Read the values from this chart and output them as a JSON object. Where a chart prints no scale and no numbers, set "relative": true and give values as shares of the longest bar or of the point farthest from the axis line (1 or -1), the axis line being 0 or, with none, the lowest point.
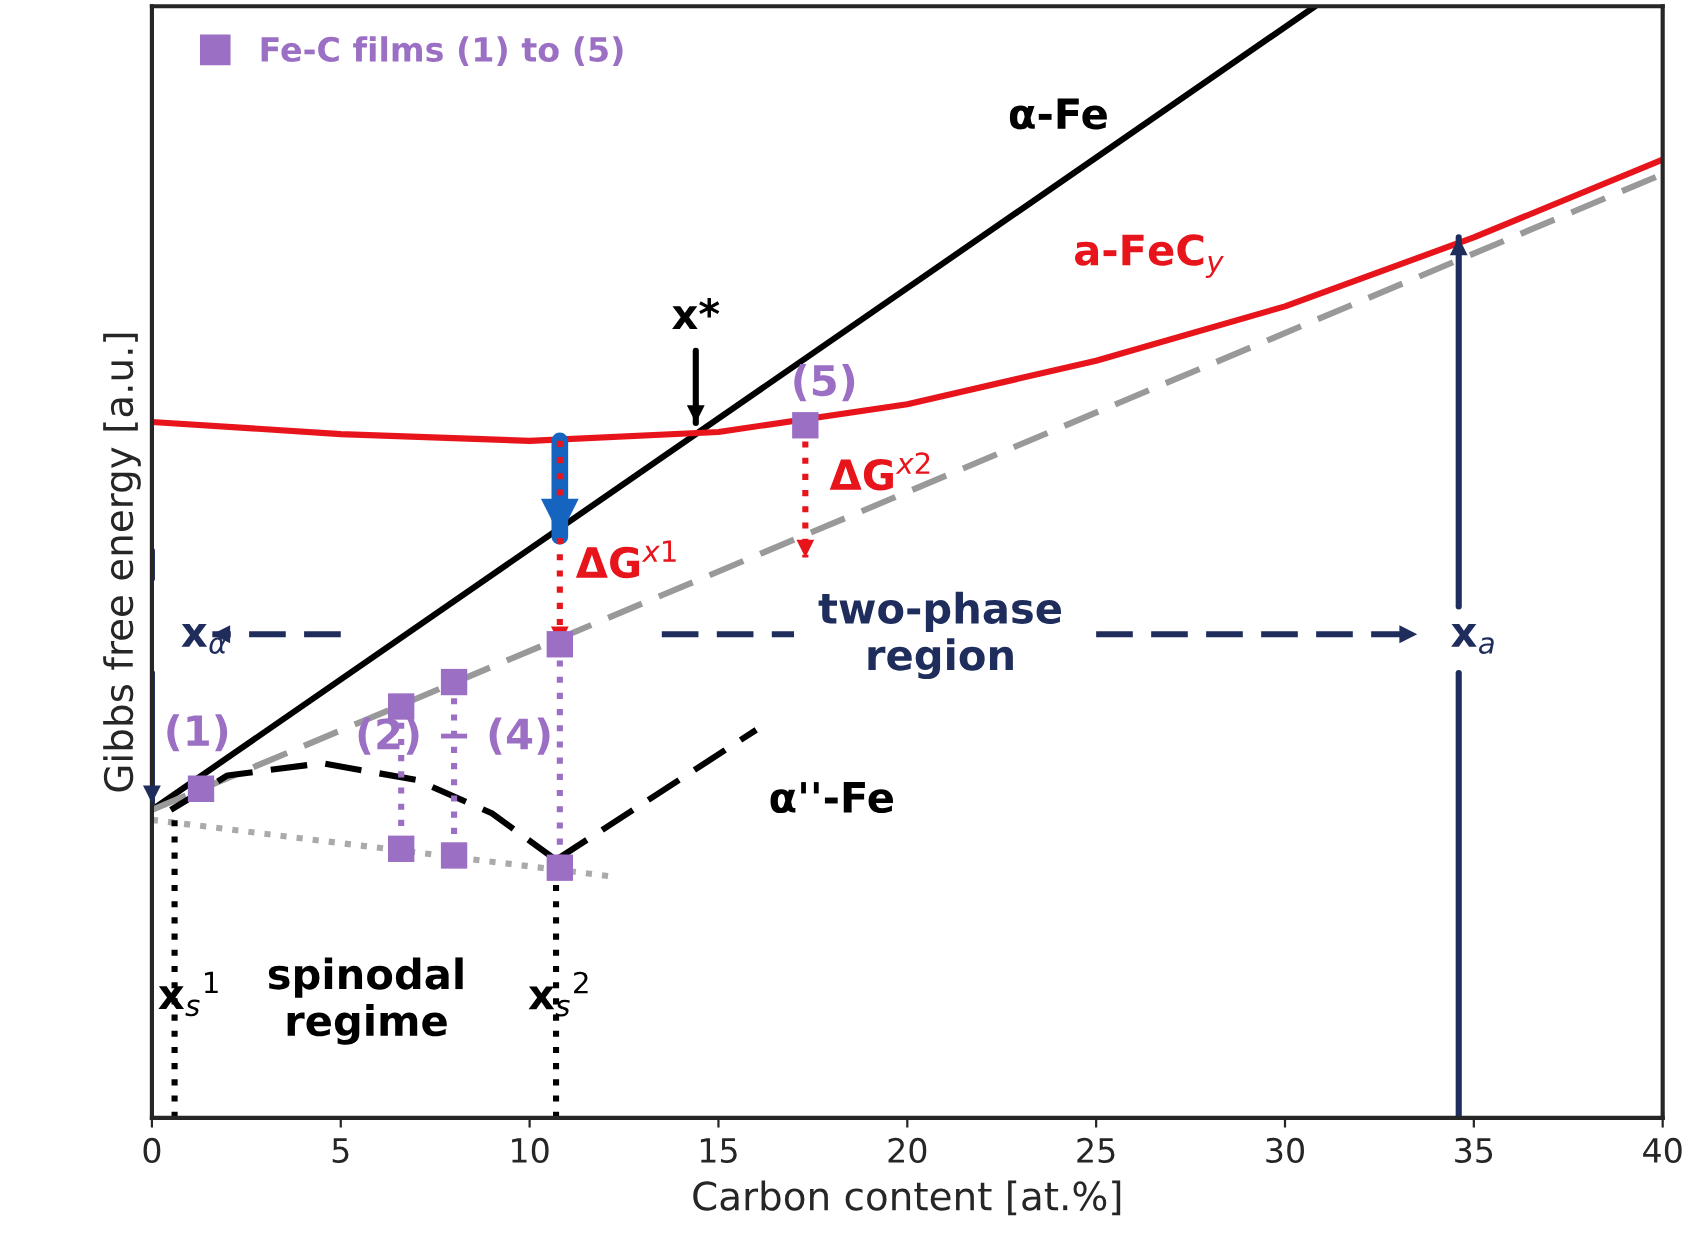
{
  "chart_data": {
    "type": "line",
    "relative": true,
    "xlabel": "Carbon content [at.%]",
    "ylabel": "Gibbs free energy [a.u.]",
    "xlim": [
      0,
      40
    ],
    "xticks": [
      0,
      5,
      10,
      15,
      20,
      25,
      30,
      35,
      40
    ],
    "grid": false,
    "legend": "top left",
    "series": [
      {
        "type": "line",
        "color": "#000000",
        "line_style": "solid",
        "x": [
          0,
          30.8
        ],
        "values": [
          0.277,
          1.0
        ]
      },
      {
        "type": "line",
        "color": "#e8141b",
        "line_style": "solid",
        "x": [
          0,
          5,
          10,
          15,
          20,
          25,
          30,
          35,
          40
        ],
        "values": [
          0.626,
          0.615,
          0.609,
          0.617,
          0.642,
          0.681,
          0.73,
          0.792,
          0.862
        ]
      },
      {
        "type": "line",
        "color": "#999999",
        "line_style": "dashed",
        "x": [
          0,
          40
        ],
        "values": [
          0.277,
          0.849
        ]
      },
      {
        "type": "line",
        "color": "#000000",
        "line_style": "dashed",
        "x": [
          0.5,
          2,
          4.5,
          7,
          9,
          10.7
        ],
        "values": [
          0.277,
          0.308,
          0.319,
          0.304,
          0.274,
          0.232
        ]
      },
      {
        "type": "line",
        "color": "#000000",
        "line_style": "dashed",
        "x": [
          10.7,
          16
        ],
        "values": [
          0.232,
          0.349
        ]
      },
      {
        "type": "line",
        "color": "#aaaaaa",
        "line_style": "dotted",
        "x": [
          0,
          12.2
        ],
        "values": [
          0.268,
          0.217
        ]
      },
      {
        "type": "line",
        "color": "#000000",
        "line_style": "dotted",
        "x": [
          0.6,
          0.6
        ],
        "values": [
          0,
          0.27
        ]
      },
      {
        "type": "line",
        "color": "#000000",
        "line_style": "dotted",
        "x": [
          10.7,
          10.7
        ],
        "values": [
          0,
          0.225
        ]
      },
      {
        "type": "line",
        "color": "#9b6fc4",
        "line_style": "dotted",
        "x": [
          6.6,
          6.6
        ],
        "values": [
          0.37,
          0.242
        ]
      },
      {
        "type": "line",
        "color": "#9b6fc4",
        "line_style": "dotted",
        "x": [
          8.0,
          8.0
        ],
        "values": [
          0.392,
          0.236
        ]
      },
      {
        "type": "line",
        "color": "#9b6fc4",
        "line_style": "dotted",
        "x": [
          10.8,
          10.8
        ],
        "values": [
          0.426,
          0.225
        ]
      },
      {
        "type": "line",
        "color": "#1565c0",
        "line_style": "solid",
        "x": [
          10.8,
          10.8
        ],
        "values": [
          0.609,
          0.523
        ]
      },
      {
        "type": "line",
        "color": "#e8141b",
        "line_style": "dotted",
        "x": [
          10.8,
          10.8
        ],
        "values": [
          0.609,
          0.426
        ]
      },
      {
        "type": "line",
        "color": "#e8141b",
        "line_style": "dotted",
        "x": [
          17.3,
          17.3
        ],
        "values": [
          0.623,
          0.504
        ]
      },
      {
        "type": "line",
        "color": "#000000",
        "line_style": "solid",
        "x": [
          14.4,
          14.4
        ],
        "values": [
          0.69,
          0.625
        ]
      },
      {
        "type": "line",
        "color": "#1f2d5c",
        "line_style": "dashed",
        "x": [
          5,
          1.6
        ],
        "values": [
          0.435,
          0.435
        ]
      },
      {
        "type": "line",
        "color": "#1f2d5c",
        "line_style": "dashed",
        "x": [
          13.5,
          17
        ],
        "values": [
          0.435,
          0.435
        ]
      },
      {
        "type": "line",
        "color": "#1f2d5c",
        "line_style": "dashed",
        "x": [
          25,
          33.5
        ],
        "values": [
          0.435,
          0.435
        ]
      },
      {
        "type": "line",
        "color": "#1f2d5c",
        "line_style": "solid",
        "x": [
          0,
          0
        ],
        "values": [
          0.51,
          0.485
        ]
      },
      {
        "type": "line",
        "color": "#1f2d5c",
        "line_style": "solid",
        "x": [
          0,
          0
        ],
        "values": [
          0.4,
          0.283
        ]
      },
      {
        "type": "line",
        "color": "#1f2d5c",
        "line_style": "solid",
        "x": [
          34.6,
          34.6
        ],
        "values": [
          0,
          0.4
        ]
      },
      {
        "type": "line",
        "color": "#1f2d5c",
        "line_style": "solid",
        "x": [
          34.6,
          34.6
        ],
        "values": [
          0.46,
          0.792
        ]
      },
      {
        "type": "scatter",
        "name": "Fe-C films (1) to (5)",
        "color": "#9b6fc4",
        "marker": "square",
        "x": [
          1.3,
          6.6,
          8.0,
          6.6,
          8.0,
          10.8,
          10.8,
          17.3
        ],
        "values": [
          0.296,
          0.37,
          0.392,
          0.242,
          0.236,
          0.426,
          0.225,
          0.623
        ]
      }
    ],
    "annotations": [
      "α-Fe",
      "a-FeC$_{y}$",
      "x*",
      "(5)",
      "ΔG$^{x2}$",
      "ΔG$^{x1}$",
      "x$_{α}$",
      "two-phase\nregion",
      "x$_{a}$",
      "(1)",
      {
        "text": "(2) − (4)",
        "x": 8.0,
        "y": 0.342
      },
      "α''-Fe",
      "x$_{s}$$^{1}$",
      "spinodal\nregime",
      {
        "text": "x$_{s}$$^{2}$",
        "x": 10.8,
        "y": 0.11
      }
    ]
  }
}
